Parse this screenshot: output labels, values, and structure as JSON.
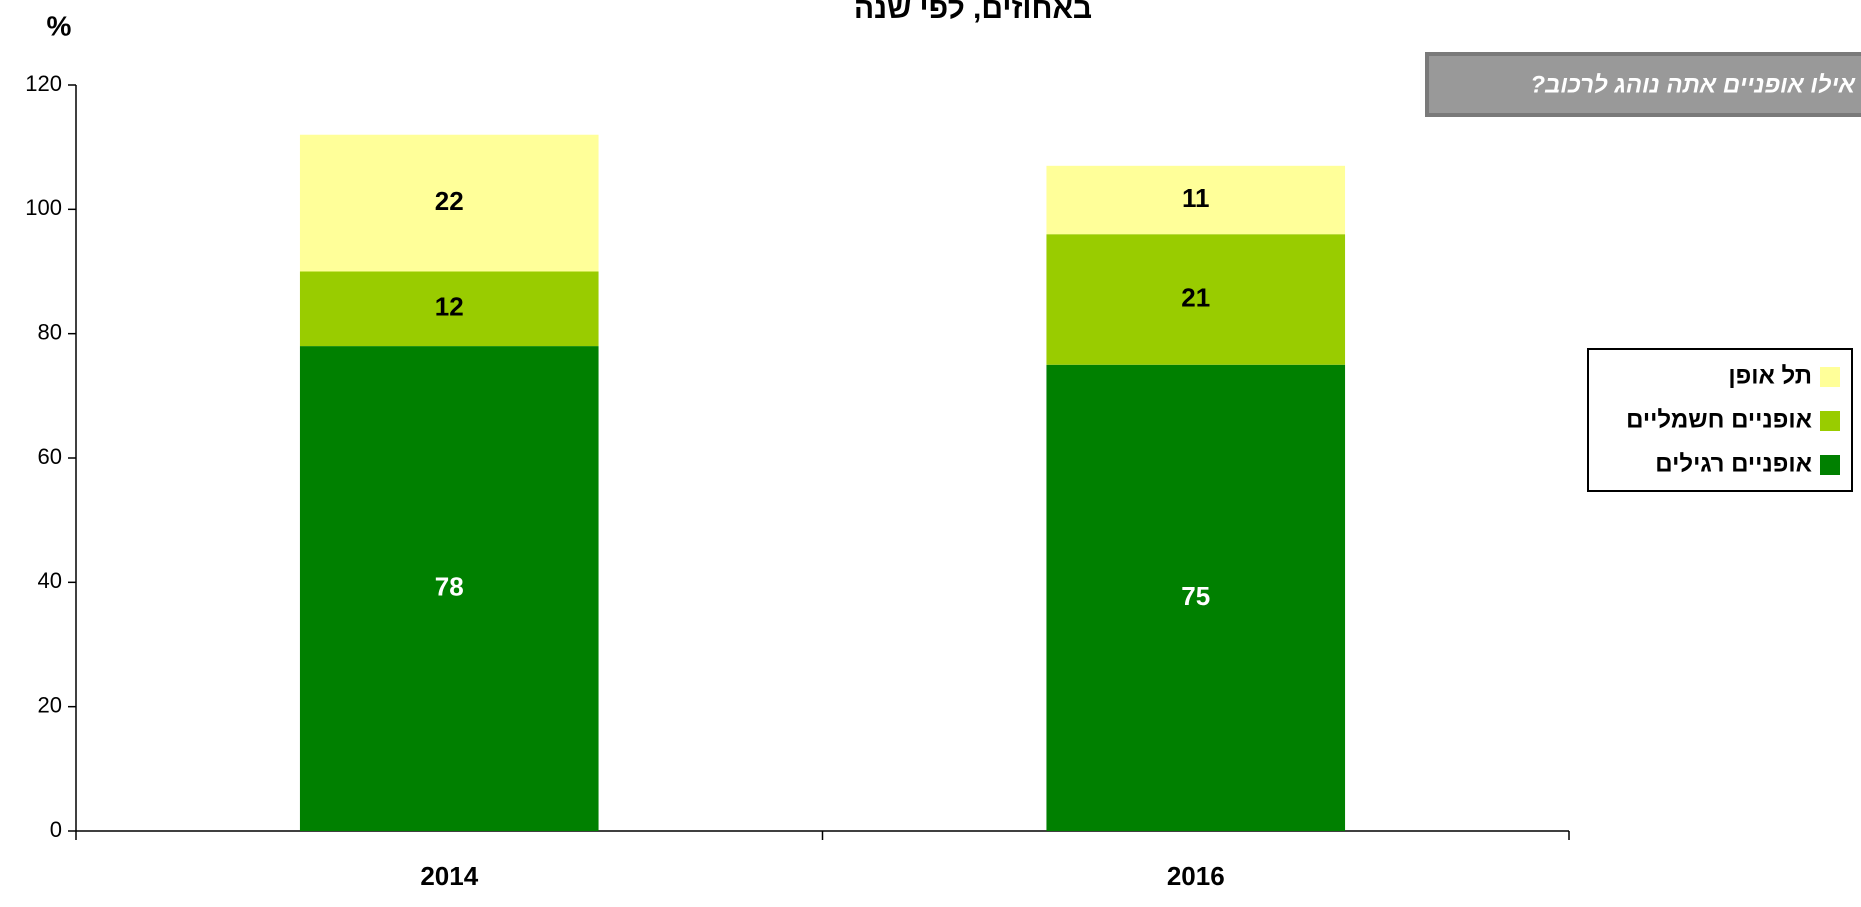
{
  "chart_data": {
    "type": "stacked_bar",
    "title": "באחוזים, לפי שנה",
    "y_label": "%",
    "annotation": "אילו אופניים אתה נוהג לרכוב?",
    "categories": [
      "2014",
      "2016"
    ],
    "series": [
      {
        "name": "אופניים רגילים",
        "color": "#008000",
        "label_color": "#ffffff",
        "values": [
          78,
          75
        ]
      },
      {
        "name": "אופניים חשמליים",
        "color": "#99cc00",
        "label_color": "#000000",
        "values": [
          12,
          21
        ]
      },
      {
        "name": "תל אופן",
        "color": "#ffff99",
        "label_color": "#000000",
        "values": [
          22,
          11
        ]
      }
    ],
    "ylim": [
      0,
      120
    ],
    "yticks": [
      0,
      20,
      40,
      60,
      80,
      100,
      120
    ],
    "grid": false,
    "legend": "right"
  }
}
